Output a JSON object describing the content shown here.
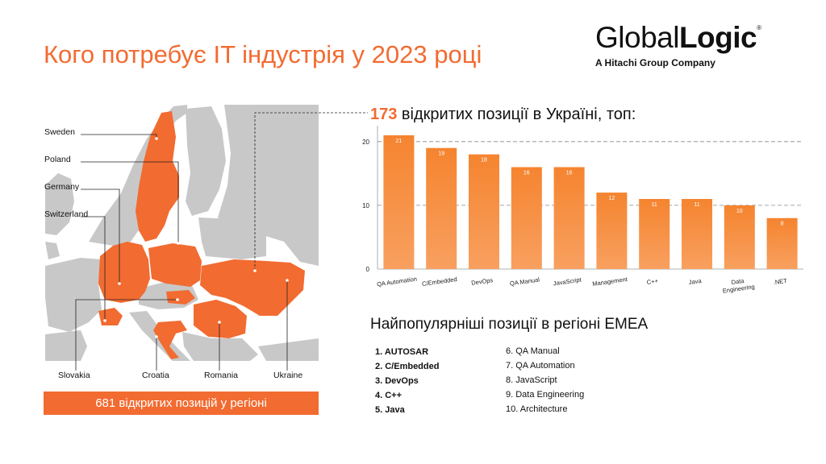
{
  "title": "Кого потребує IT індустрія у 2023 році",
  "logo": {
    "word_light": "Global",
    "word_bold": "Logic",
    "registered": "®",
    "subtitle": "A Hitachi Group Company"
  },
  "map": {
    "labels": [
      "Sweden",
      "Poland",
      "Germany",
      "Switzerland",
      "Slovakia",
      "Croatia",
      "Romania",
      "Ukraine"
    ],
    "colors": {
      "highlight": "#f26b31",
      "land": "#c9c9c9",
      "sea": "#ffffff",
      "border": "#ffffff"
    }
  },
  "region_total": "681 відкритих позицій у регіоні",
  "ukraine_heading": {
    "number": "173",
    "text": " відкритих позиції в Україні, топ:"
  },
  "chart_data": {
    "type": "bar",
    "categories": [
      "QA Automation",
      "C/Embedded",
      "DevOps",
      "QA Manual",
      "JavaScript",
      "Management",
      "C++",
      "Java",
      "Data Engineering",
      ".NET"
    ],
    "values": [
      21,
      19,
      18,
      16,
      16,
      12,
      11,
      11,
      10,
      8
    ],
    "y_ticks": [
      "0",
      "10",
      "20"
    ],
    "ylim": [
      0,
      22
    ],
    "grid": "dashed at 10 and 20",
    "bar_color_top": "#f5842f",
    "bar_color_bottom": "#f8a060"
  },
  "emea": {
    "heading": "Найпопулярніші позиції в регіоні EMEA",
    "left_list": [
      "1. AUTOSAR",
      "2. C/Embedded",
      "3. DevOps",
      "4. C++",
      "5. Java"
    ],
    "right_list": [
      "6. QA Manual",
      "7. QA Automation",
      "8. JavaScript",
      "9. Data Engineering",
      "10. Architecture"
    ]
  }
}
